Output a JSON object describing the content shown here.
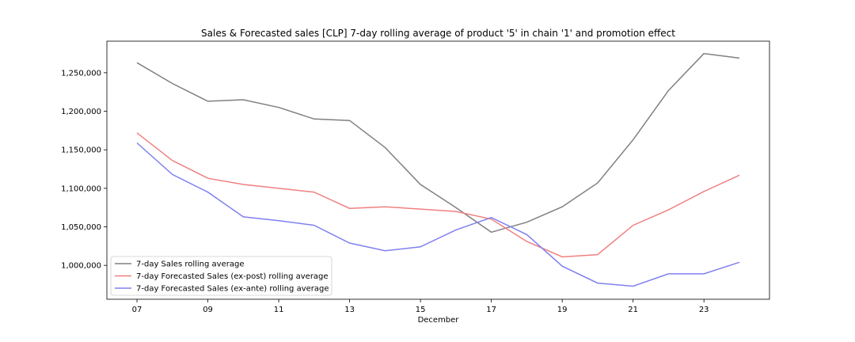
{
  "chart_data": {
    "type": "line",
    "title": "Sales & Forecasted sales [CLP] 7-day rolling average of product '5' in chain '1' and promotion effect",
    "xlabel": "December",
    "ylabel": "",
    "x": [
      7,
      8,
      9,
      10,
      11,
      12,
      13,
      14,
      15,
      16,
      17,
      18,
      19,
      20,
      21,
      22,
      23,
      24
    ],
    "xlim": [
      6.15,
      24.85
    ],
    "ylim": [
      956000,
      1291000
    ],
    "x_ticks": [
      7,
      9,
      11,
      13,
      15,
      17,
      19,
      21,
      23
    ],
    "x_tick_labels": [
      "07",
      "09",
      "11",
      "13",
      "15",
      "17",
      "19",
      "21",
      "23"
    ],
    "y_ticks": [
      1000000,
      1050000,
      1100000,
      1150000,
      1200000,
      1250000
    ],
    "y_tick_labels": [
      "1,000,000",
      "1,050,000",
      "1,100,000",
      "1,150,000",
      "1,200,000",
      "1,250,000"
    ],
    "grid": false,
    "legend_position": "lower-left",
    "series": [
      {
        "name": "7-day Sales rolling average",
        "color": "#808080",
        "values": [
          1263000,
          1236000,
          1213000,
          1215000,
          1205000,
          1190000,
          1188000,
          1153000,
          1105000,
          1075000,
          1043000,
          1056000,
          1076000,
          1107000,
          1163000,
          1227000,
          1275000,
          1269000
        ]
      },
      {
        "name": "7-day Forecasted Sales (ex-post) rolling average",
        "color": "#f08080",
        "values": [
          1172000,
          1136000,
          1113000,
          1105000,
          1100000,
          1095000,
          1074000,
          1076000,
          1073000,
          1070000,
          1060000,
          1031000,
          1011000,
          1014000,
          1052000,
          1072000,
          1096000,
          1117000
        ]
      },
      {
        "name": "7-day Forecasted Sales (ex-ante) rolling average",
        "color": "#8080f0",
        "values": [
          1159000,
          1118000,
          1095000,
          1063000,
          1058000,
          1052000,
          1029000,
          1019000,
          1024000,
          1046000,
          1062000,
          1040000,
          999000,
          977000,
          973000,
          989000,
          989000,
          1004000
        ]
      }
    ]
  }
}
